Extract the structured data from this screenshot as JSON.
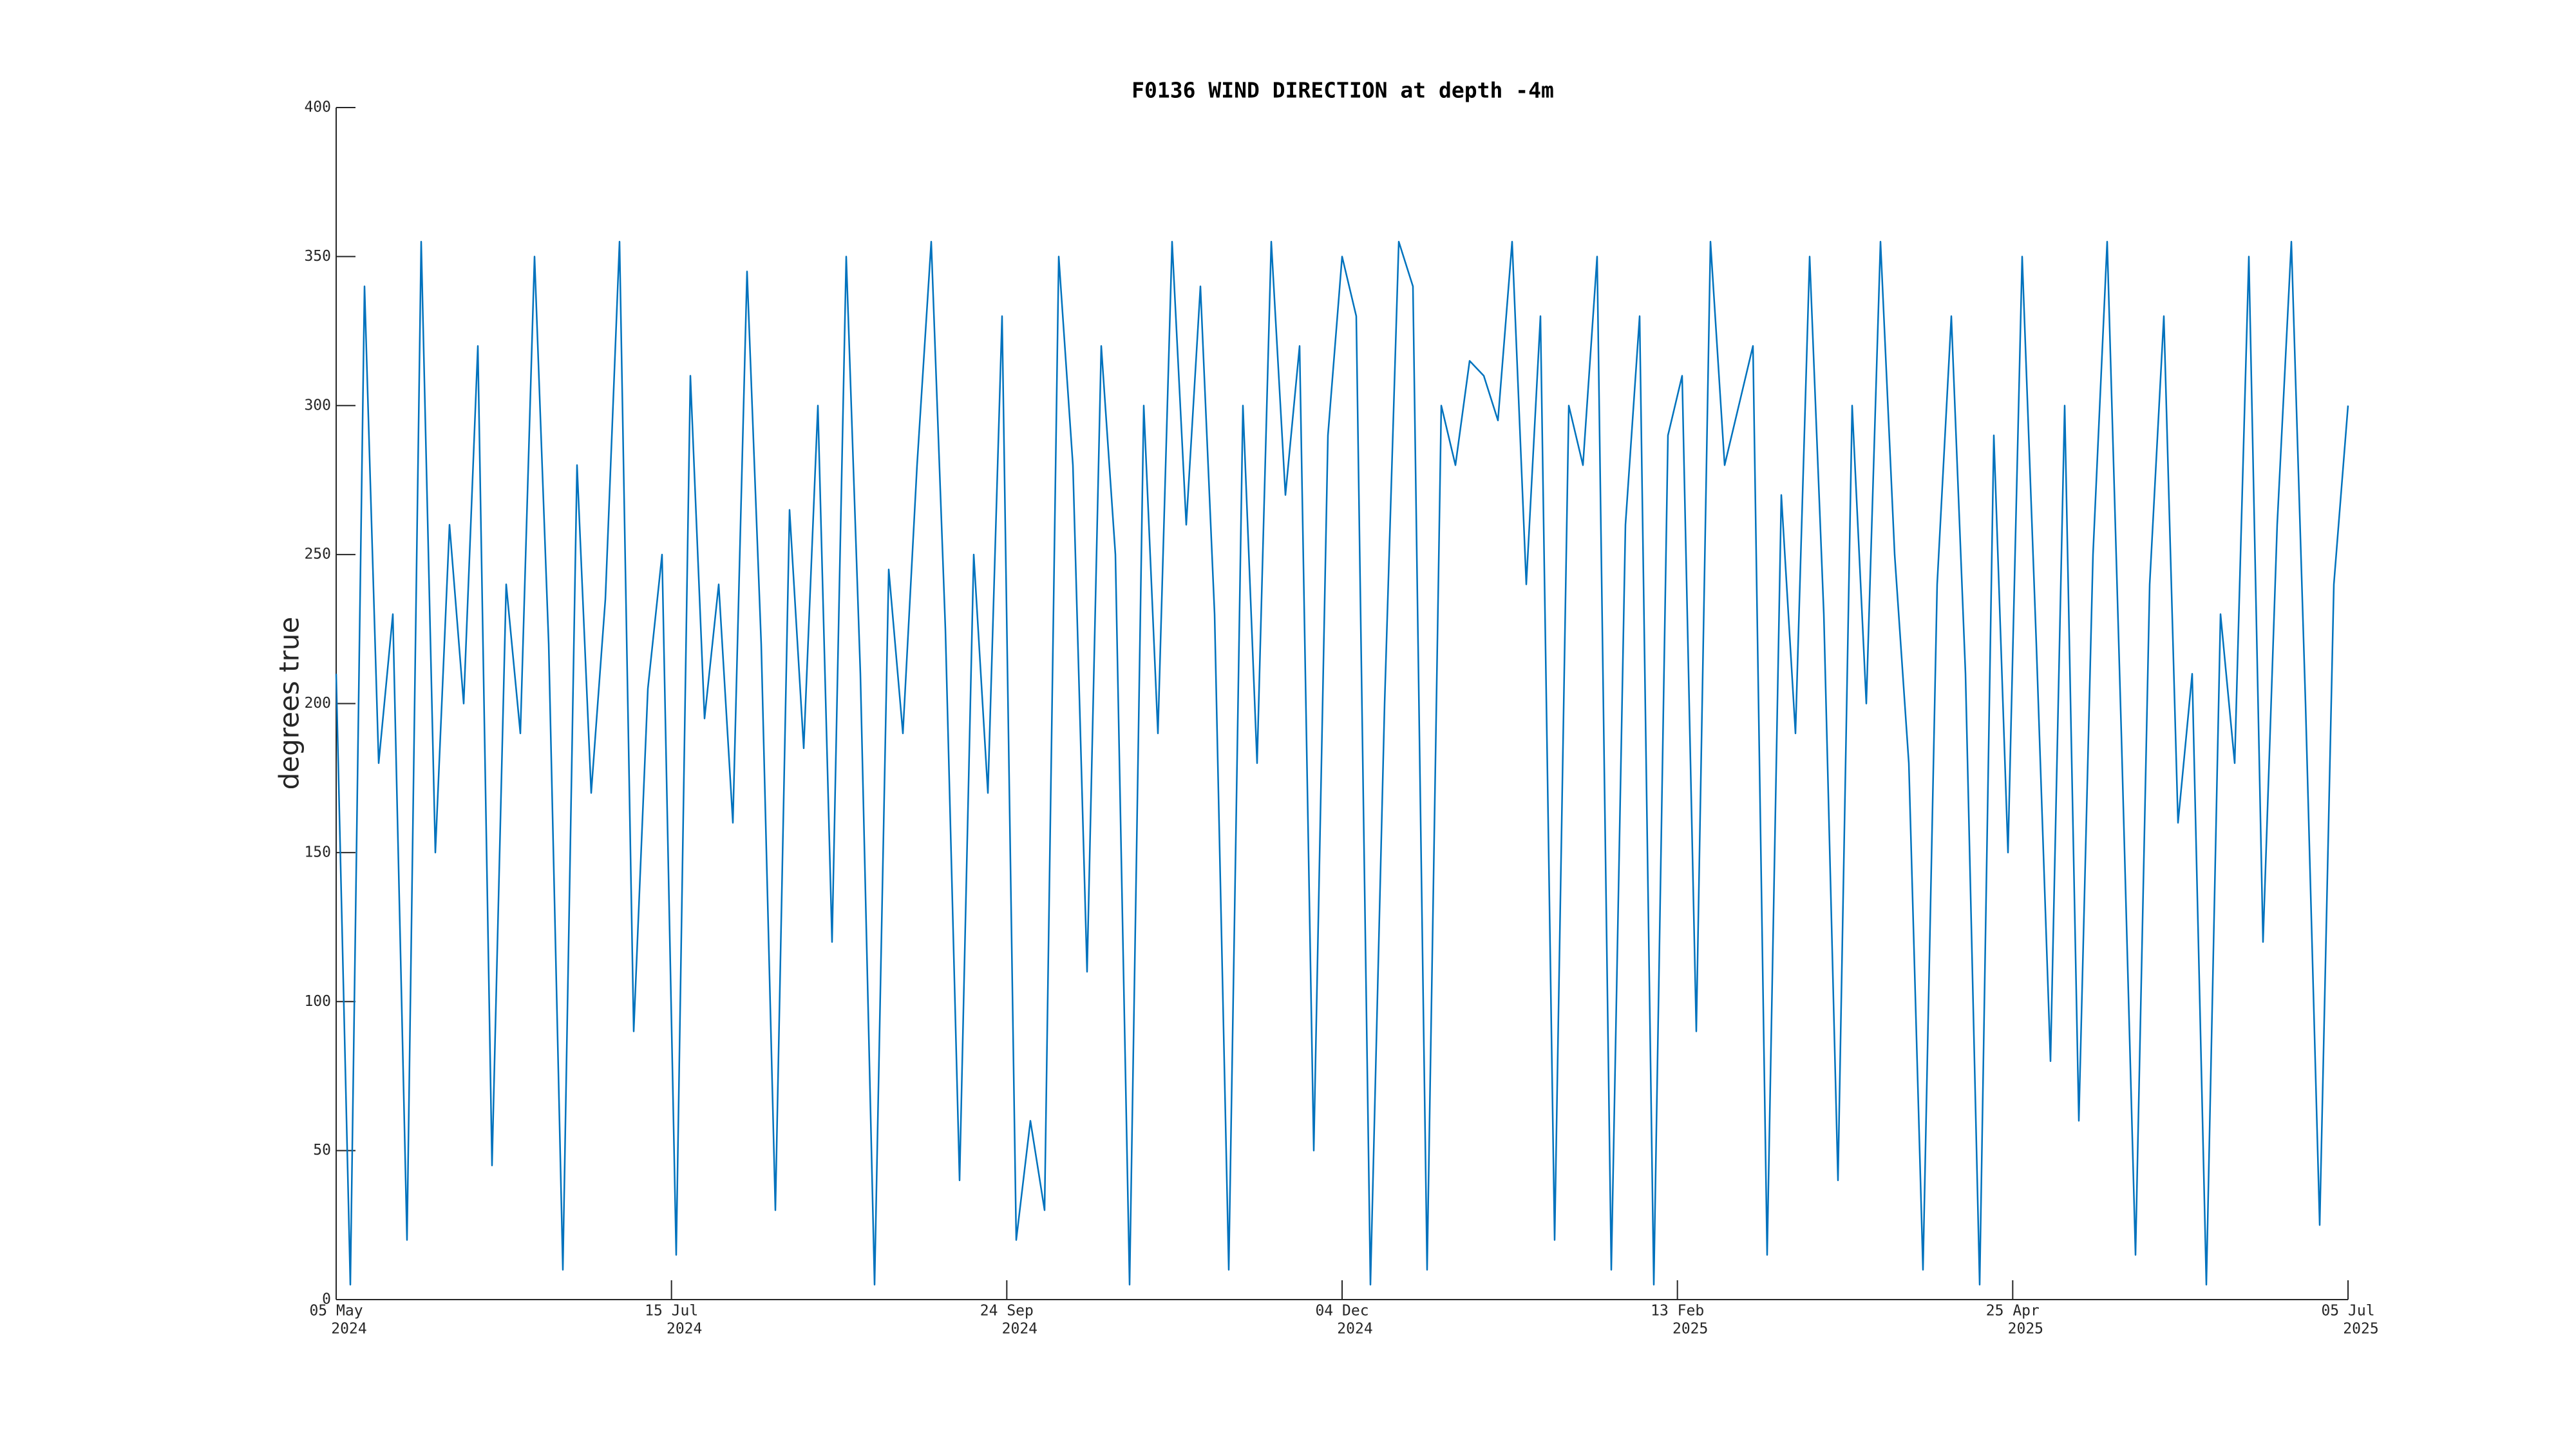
{
  "chart_data": {
    "type": "line",
    "title": "F0136 WIND DIRECTION at depth -4m",
    "y_label": "degrees true",
    "x": [
      "2024-05-05",
      "2024-05-08",
      "2024-05-11",
      "2024-05-14",
      "2024-05-17",
      "2024-05-20",
      "2024-05-23",
      "2024-05-26",
      "2024-05-29",
      "2024-06-01",
      "2024-06-04",
      "2024-06-07",
      "2024-06-10",
      "2024-06-13",
      "2024-06-16",
      "2024-06-19",
      "2024-06-22",
      "2024-06-25",
      "2024-06-28",
      "2024-07-01",
      "2024-07-04",
      "2024-07-07",
      "2024-07-10",
      "2024-07-13",
      "2024-07-16",
      "2024-07-19",
      "2024-07-22",
      "2024-07-25",
      "2024-07-28",
      "2024-07-31",
      "2024-08-03",
      "2024-08-06",
      "2024-08-09",
      "2024-08-12",
      "2024-08-15",
      "2024-08-18",
      "2024-08-21",
      "2024-08-24",
      "2024-08-27",
      "2024-08-30",
      "2024-09-02",
      "2024-09-05",
      "2024-09-08",
      "2024-09-11",
      "2024-09-14",
      "2024-09-17",
      "2024-09-20",
      "2024-09-23",
      "2024-09-26",
      "2024-09-29",
      "2024-10-02",
      "2024-10-05",
      "2024-10-08",
      "2024-10-11",
      "2024-10-14",
      "2024-10-17",
      "2024-10-20",
      "2024-10-23",
      "2024-10-26",
      "2024-10-29",
      "2024-11-01",
      "2024-11-04",
      "2024-11-07",
      "2024-11-10",
      "2024-11-13",
      "2024-11-16",
      "2024-11-19",
      "2024-11-22",
      "2024-11-25",
      "2024-11-28",
      "2024-12-01",
      "2024-12-04",
      "2024-12-07",
      "2024-12-10",
      "2024-12-13",
      "2024-12-16",
      "2024-12-19",
      "2024-12-22",
      "2024-12-25",
      "2024-12-28",
      "2024-12-31",
      "2025-01-03",
      "2025-01-06",
      "2025-01-09",
      "2025-01-12",
      "2025-01-15",
      "2025-01-18",
      "2025-01-21",
      "2025-01-24",
      "2025-01-27",
      "2025-01-30",
      "2025-02-02",
      "2025-02-05",
      "2025-02-08",
      "2025-02-11",
      "2025-02-14",
      "2025-02-17",
      "2025-02-20",
      "2025-02-23",
      "2025-02-26",
      "2025-03-01",
      "2025-03-04",
      "2025-03-07",
      "2025-03-10",
      "2025-03-13",
      "2025-03-16",
      "2025-03-19",
      "2025-03-22",
      "2025-03-25",
      "2025-03-28",
      "2025-03-31",
      "2025-04-03",
      "2025-04-06",
      "2025-04-09",
      "2025-04-12",
      "2025-04-15",
      "2025-04-18",
      "2025-04-21",
      "2025-04-24",
      "2025-04-27",
      "2025-04-30",
      "2025-05-03",
      "2025-05-06",
      "2025-05-09",
      "2025-05-12",
      "2025-05-15",
      "2025-05-18",
      "2025-05-21",
      "2025-05-24",
      "2025-05-27",
      "2025-05-30",
      "2025-06-02",
      "2025-06-05",
      "2025-06-08",
      "2025-06-11",
      "2025-06-14",
      "2025-06-17",
      "2025-06-20",
      "2025-06-23",
      "2025-06-26",
      "2025-06-29",
      "2025-07-02",
      "2025-07-05"
    ],
    "series": [
      {
        "color": "#0072bd",
        "values": [
          210,
          5,
          340,
          180,
          230,
          20,
          355,
          150,
          260,
          200,
          320,
          45,
          240,
          190,
          350,
          220,
          10,
          280,
          170,
          235,
          355,
          90,
          205,
          250,
          15,
          310,
          195,
          240,
          160,
          345,
          220,
          30,
          265,
          185,
          300,
          120,
          350,
          210,
          5,
          245,
          190,
          280,
          355,
          225,
          40,
          250,
          170,
          330,
          20,
          60,
          30,
          350,
          280,
          110,
          320,
          250,
          5,
          300,
          190,
          355,
          260,
          340,
          230,
          10,
          300,
          180,
          355,
          270,
          320,
          50,
          290,
          350,
          330,
          5,
          200,
          355,
          340,
          10,
          300,
          280,
          315,
          310,
          295,
          355,
          240,
          330,
          20,
          300,
          280,
          350,
          10,
          260,
          330,
          5,
          290,
          310,
          90,
          355,
          280,
          300,
          320,
          15,
          270,
          190,
          350,
          230,
          40,
          300,
          200,
          355,
          250,
          180,
          10,
          240,
          330,
          210,
          5,
          290,
          150,
          350,
          220,
          80,
          300,
          60,
          250,
          355,
          190,
          15,
          240,
          330,
          160,
          210,
          5,
          230,
          180,
          350,
          120,
          260,
          355,
          200,
          25,
          240,
          300
        ]
      }
    ],
    "xlim": [
      "2024-05-05",
      "2025-07-05"
    ],
    "xticks": [
      {
        "value": "2024-05-05",
        "label": "05 May",
        "year": "2024"
      },
      {
        "value": "2024-07-15",
        "label": "15 Jul",
        "year": "2024"
      },
      {
        "value": "2024-09-24",
        "label": "24 Sep",
        "year": "2024"
      },
      {
        "value": "2024-12-04",
        "label": "04 Dec",
        "year": "2024"
      },
      {
        "value": "2025-02-13",
        "label": "13 Feb",
        "year": "2025"
      },
      {
        "value": "2025-04-25",
        "label": "25 Apr",
        "year": "2025"
      },
      {
        "value": "2025-07-05",
        "label": "05 Jul",
        "year": "2025"
      }
    ],
    "ylim": [
      0,
      400
    ],
    "yticks": [
      0,
      50,
      100,
      150,
      200,
      250,
      300,
      350,
      400
    ],
    "grid": false
  }
}
